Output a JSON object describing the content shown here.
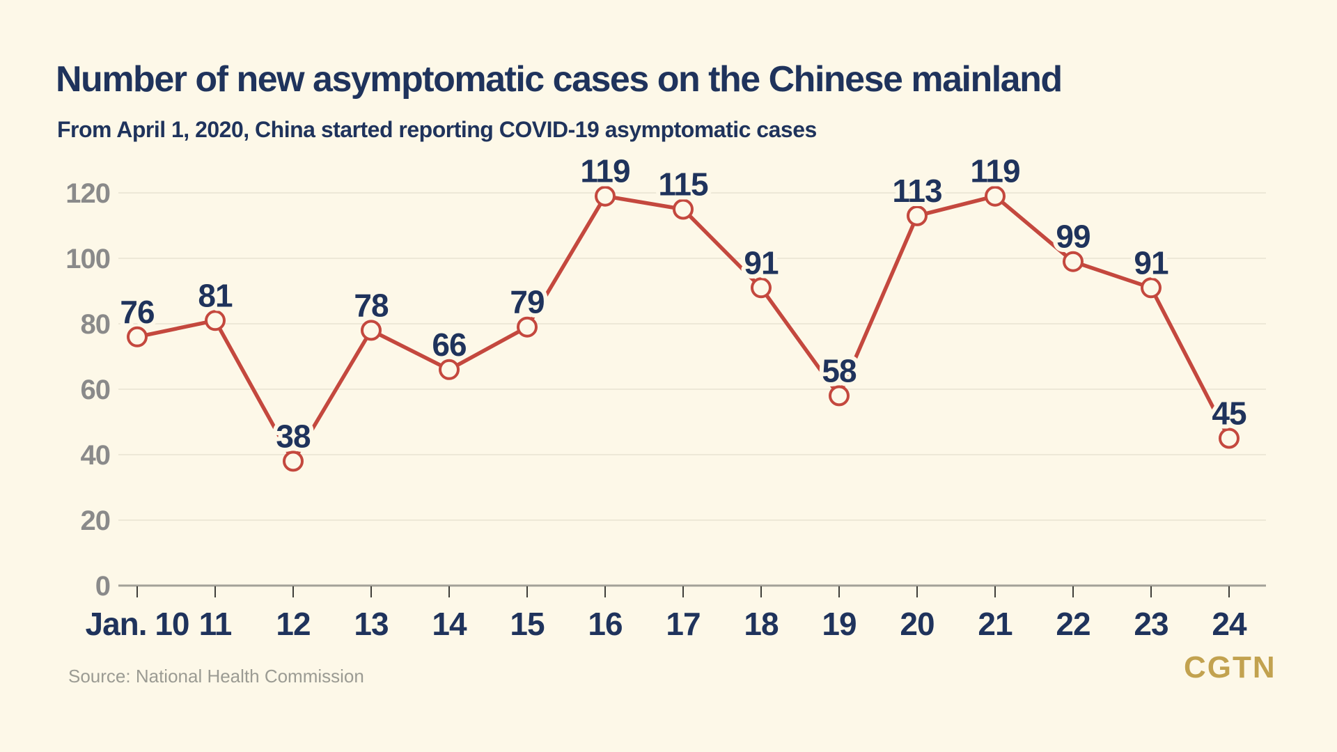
{
  "header": {
    "title": "Number of new asymptomatic cases on the Chinese mainland",
    "subtitle": "From April 1, 2020, China started reporting COVID-19 asymptomatic cases"
  },
  "footer": {
    "source": "Source: National Health Commission",
    "logo": "CGTN"
  },
  "colors": {
    "background": "#FDF8E8",
    "navy": "#1F335C",
    "line_red": "#C4483E",
    "gridline": "#EDE8D7",
    "axis_line": "#A3A198",
    "tick_mark": "#3F3E39",
    "y_label_gray": "#8A8A8A",
    "source_gray": "#9B9B93",
    "logo_gold": "#C2A24F"
  },
  "chart_data": {
    "type": "line",
    "title": "Number of new asymptomatic cases on the Chinese mainland",
    "subtitle": "From April 1, 2020, China started reporting COVID-19 asymptomatic cases",
    "categories": [
      "Jan. 10",
      "11",
      "12",
      "13",
      "14",
      "15",
      "16",
      "17",
      "18",
      "19",
      "20",
      "21",
      "22",
      "23",
      "24"
    ],
    "values": [
      76,
      81,
      38,
      78,
      66,
      79,
      119,
      115,
      91,
      58,
      113,
      119,
      99,
      91,
      45
    ],
    "xlabel": "",
    "ylabel": "",
    "ylim": [
      0,
      120
    ],
    "yticks": [
      0,
      20,
      40,
      60,
      80,
      100,
      120
    ],
    "grid": true,
    "legend": false,
    "marker": "open-circle",
    "data_labels": true,
    "source": "Source: National Health Commission"
  }
}
